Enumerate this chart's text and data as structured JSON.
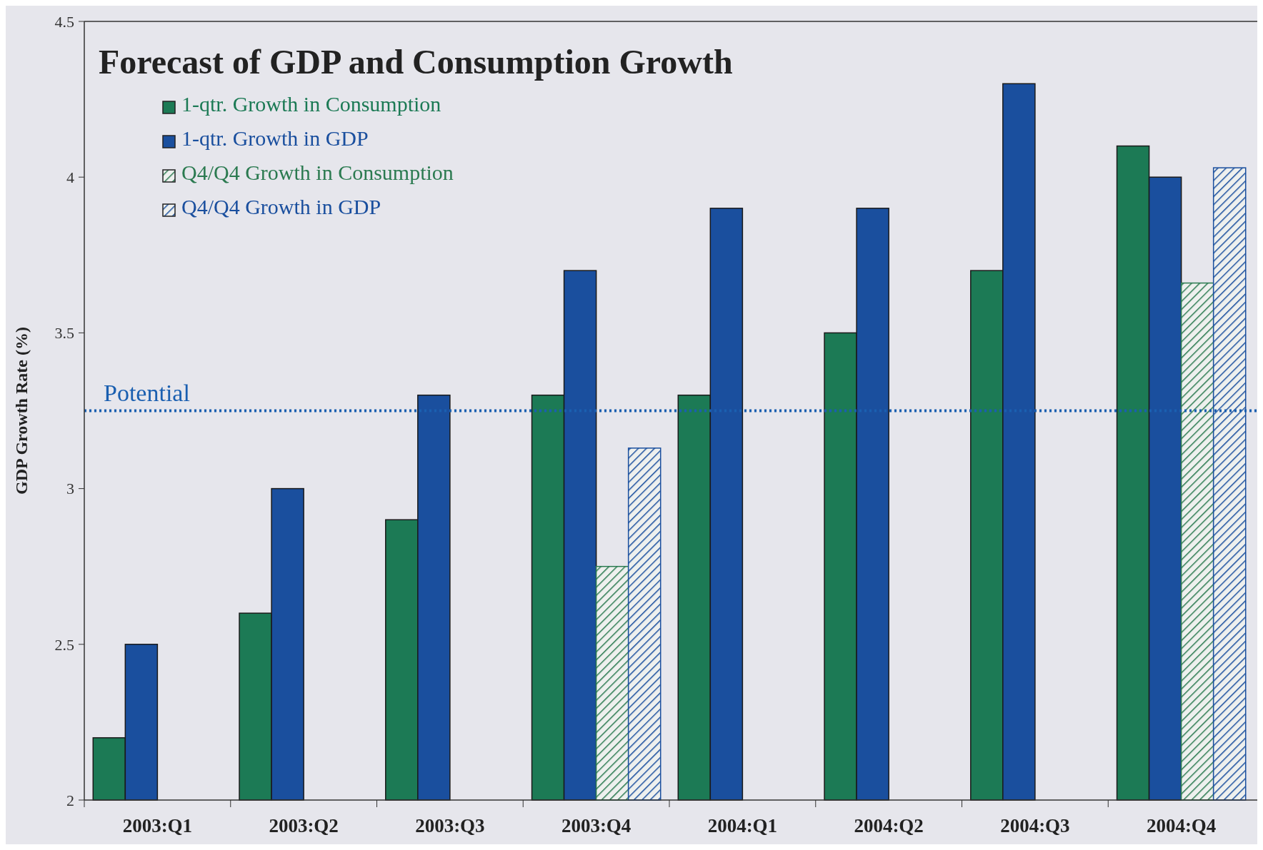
{
  "chart_data": {
    "type": "bar",
    "title": "Forecast of GDP and Consumption Growth",
    "ylabel": "GDP Growth Rate (%)",
    "categories": [
      "2003:Q1",
      "2003:Q2",
      "2003:Q3",
      "2003:Q4",
      "2004:Q1",
      "2004:Q2",
      "2004:Q3",
      "2004:Q4"
    ],
    "series": [
      {
        "name": "1-qtr. Growth in Consumption",
        "color": "#1c7a55",
        "values": [
          2.2,
          2.6,
          2.9,
          3.3,
          3.3,
          3.5,
          3.7,
          4.1
        ]
      },
      {
        "name": "1-qtr. Growth in GDP",
        "color": "#1a4f9e",
        "values": [
          2.5,
          3.0,
          3.3,
          3.7,
          3.9,
          3.9,
          4.3,
          4.0
        ]
      },
      {
        "name": "Q4/Q4 Growth in Consumption",
        "color": "#2b7a50",
        "values": [
          null,
          null,
          null,
          2.75,
          null,
          null,
          null,
          3.66
        ]
      },
      {
        "name": "Q4/Q4 Growth in GDP",
        "color": "#1a4f9e",
        "values": [
          null,
          null,
          null,
          3.13,
          null,
          null,
          null,
          4.03
        ]
      }
    ],
    "ylim": [
      2,
      4.5
    ],
    "yticks": [
      2,
      2.5,
      3,
      3.5,
      4,
      4.5
    ],
    "grid": false,
    "legend": "top left",
    "ref_lines": [
      {
        "axis": "y",
        "value": 3.25,
        "label": "Potential",
        "color": "#1a5fb0",
        "line_style": "dotted"
      }
    ]
  }
}
